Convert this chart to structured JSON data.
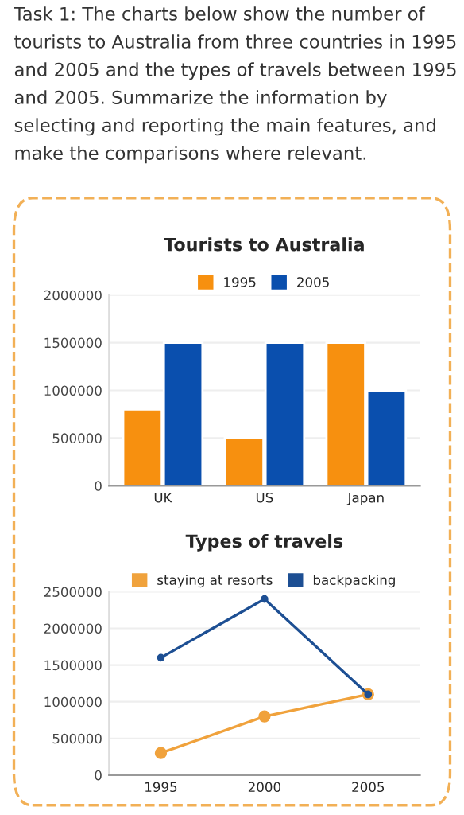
{
  "chart_data": [
    {
      "type": "bar",
      "title": "Tourists to Australia",
      "annotations": [
        "Task 1: The charts below show the number of tourists to Australia from three countries in 1995 and 2005 and the types of travels between 1995 and 2005. Summarize the information by selecting and reporting the main features, and make the comparisons where relevant."
      ],
      "categories": [
        "UK",
        "US",
        "Japan"
      ],
      "series": [
        {
          "name": "1995",
          "color": "#f7900f",
          "values": [
            800000,
            500000,
            1500000
          ]
        },
        {
          "name": "2005",
          "color": "#0a4fae",
          "values": [
            1500000,
            1500000,
            1000000
          ]
        }
      ],
      "ylim": [
        0,
        2000000
      ],
      "yticks": [
        0,
        500000,
        1000000,
        1500000,
        2000000
      ],
      "grid": "y",
      "legend": "top"
    },
    {
      "type": "line",
      "title": "Types of travels",
      "categories": [
        "1995",
        "2000",
        "2005"
      ],
      "series": [
        {
          "name": "staying at resorts",
          "color": "#f0a23c",
          "values": [
            300000,
            800000,
            1100000
          ]
        },
        {
          "name": "backpacking",
          "color": "#1d4f93",
          "values": [
            1600000,
            2400000,
            1100000
          ]
        }
      ],
      "ylim": [
        0,
        2500000
      ],
      "yticks": [
        0,
        500000,
        1000000,
        1500000,
        2000000,
        2500000
      ],
      "grid": "y",
      "legend": "top",
      "marker": "circle"
    }
  ]
}
